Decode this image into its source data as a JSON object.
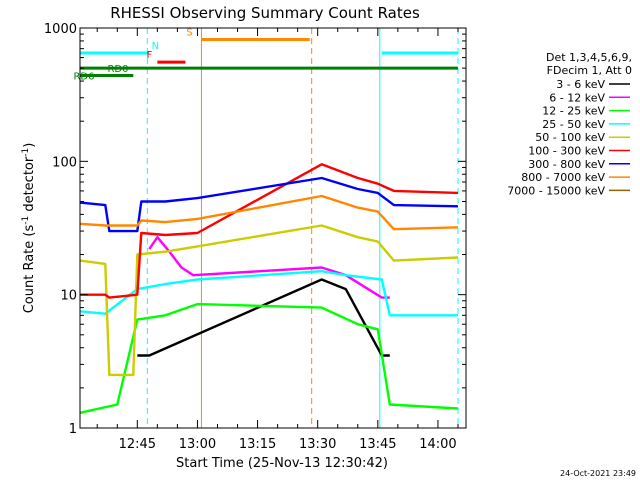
{
  "chart_data": {
    "type": "line",
    "title": "RHESSI Observing Summary Count Rates",
    "xlabel": "Start Time (25-Nov-13 12:30:42)",
    "ylabel_main": "Count Rate (s",
    "ylabel_sup1": "-1",
    "ylabel_mid": " detector",
    "ylabel_sup2": "-1",
    "ylabel_end": ")",
    "yscale": "log",
    "ylim": [
      1,
      1000
    ],
    "xlim": [
      "12:30:42",
      "14:07:00"
    ],
    "x_ticks": [
      "12:45",
      "13:00",
      "13:15",
      "13:30",
      "13:45",
      "14:00"
    ],
    "y_ticks": [
      "1",
      "10",
      "100",
      "1000"
    ],
    "legend_header": [
      "Det 1,3,4,5,6,9,",
      "FDecim 1, Att 0"
    ],
    "legend_position": "right",
    "timestamp": "24-Oct-2021 23:49",
    "series": [
      {
        "name": "3 - 6 keV",
        "color": "#000000",
        "points": [
          [
            "12:45:00",
            3.5
          ],
          [
            "12:48:00",
            3.5
          ],
          [
            "13:31:00",
            13
          ],
          [
            "13:37:00",
            11
          ],
          [
            "13:46:00",
            3.5
          ],
          [
            "13:48:00",
            3.5
          ]
        ]
      },
      {
        "name": "6 - 12 keV",
        "color": "#ff00ff",
        "points": [
          [
            "12:48:00",
            22
          ],
          [
            "12:50:00",
            27
          ],
          [
            "12:53:00",
            21
          ],
          [
            "12:56:00",
            16
          ],
          [
            "12:59:00",
            14
          ],
          [
            "13:31:00",
            16
          ],
          [
            "13:37:00",
            14
          ],
          [
            "13:46:00",
            9.5
          ],
          [
            "13:48:00",
            9.5
          ]
        ]
      },
      {
        "name": "12 - 25 keV",
        "color": "#00ff00",
        "points": [
          [
            "12:30:42",
            1.3
          ],
          [
            "12:40:00",
            1.5
          ],
          [
            "12:45:00",
            6.5
          ],
          [
            "12:52:00",
            7
          ],
          [
            "13:00:00",
            8.5
          ],
          [
            "13:31:00",
            8
          ],
          [
            "13:40:00",
            6
          ],
          [
            "13:45:00",
            5.5
          ],
          [
            "13:48:00",
            1.5
          ],
          [
            "14:05:00",
            1.4
          ]
        ]
      },
      {
        "name": "25 - 50 keV",
        "color": "#00ffff",
        "points": [
          [
            "12:30:42",
            7.5
          ],
          [
            "12:37:00",
            7.2
          ],
          [
            "12:45:00",
            11
          ],
          [
            "12:52:00",
            12
          ],
          [
            "13:00:00",
            13
          ],
          [
            "13:31:00",
            15
          ],
          [
            "13:37:00",
            14
          ],
          [
            "13:46:00",
            13
          ],
          [
            "13:48:00",
            7
          ],
          [
            "14:05:00",
            7
          ]
        ]
      },
      {
        "name": "50 - 100 keV",
        "color": "#cccc00",
        "points": [
          [
            "12:30:42",
            18
          ],
          [
            "12:37:00",
            17
          ],
          [
            "12:38:00",
            2.5
          ],
          [
            "12:44:00",
            2.5
          ],
          [
            "12:45:00",
            20
          ],
          [
            "12:52:00",
            21
          ],
          [
            "13:00:00",
            23
          ],
          [
            "13:31:00",
            33
          ],
          [
            "13:40:00",
            27
          ],
          [
            "13:45:00",
            25
          ],
          [
            "13:49:00",
            18
          ],
          [
            "14:05:00",
            19
          ]
        ]
      },
      {
        "name": "100 - 300 keV",
        "color": "#ff0000",
        "points": [
          [
            "12:30:42",
            10
          ],
          [
            "12:37:00",
            10
          ],
          [
            "12:38:00",
            9.5
          ],
          [
            "12:45:00",
            10
          ],
          [
            "12:46:00",
            29
          ],
          [
            "12:52:00",
            28
          ],
          [
            "13:00:00",
            29
          ],
          [
            "13:31:00",
            95
          ],
          [
            "13:40:00",
            75
          ],
          [
            "13:45:00",
            68
          ],
          [
            "13:49:00",
            60
          ],
          [
            "14:05:00",
            58
          ]
        ]
      },
      {
        "name": "300 - 800 keV",
        "color": "#0000ff",
        "points": [
          [
            "12:30:42",
            49
          ],
          [
            "12:37:00",
            47
          ],
          [
            "12:38:00",
            30
          ],
          [
            "12:45:00",
            30
          ],
          [
            "12:46:00",
            50
          ],
          [
            "12:52:00",
            50
          ],
          [
            "13:00:00",
            53
          ],
          [
            "13:31:00",
            75
          ],
          [
            "13:40:00",
            62
          ],
          [
            "13:45:00",
            58
          ],
          [
            "13:49:00",
            47
          ],
          [
            "14:05:00",
            46
          ]
        ]
      },
      {
        "name": "800 - 7000 keV",
        "color": "#ff8800",
        "points": [
          [
            "12:30:42",
            34
          ],
          [
            "12:37:00",
            33
          ],
          [
            "12:45:00",
            33
          ],
          [
            "12:46:00",
            36
          ],
          [
            "12:52:00",
            35
          ],
          [
            "13:00:00",
            37
          ],
          [
            "13:31:00",
            55
          ],
          [
            "13:40:00",
            45
          ],
          [
            "13:45:00",
            42
          ],
          [
            "13:49:00",
            31
          ],
          [
            "14:05:00",
            32
          ]
        ]
      },
      {
        "name": "7000 - 15000 keV",
        "color": "#8b6508",
        "points": []
      }
    ],
    "flags": [
      {
        "label": "N",
        "color": "#00ffff",
        "start": "12:30:42",
        "end": "12:48:00",
        "level": 650
      },
      {
        "label": "N",
        "color": "#00ffff",
        "start": "13:46:00",
        "end": "14:05:00",
        "level": 650,
        "hidden_label": true
      },
      {
        "label": "F",
        "color": "#ff0000",
        "start": "12:50:00",
        "end": "12:57:00",
        "level": 555
      },
      {
        "label": "S",
        "color": "#ff8800",
        "start": "13:01:00",
        "end": "13:28:00",
        "level": 820
      },
      {
        "label": "RD0",
        "color": "#008000",
        "start": "12:30:42",
        "end": "14:05:00",
        "level": 500
      },
      {
        "label": "RD6",
        "color": "#008000",
        "start": "12:30:42",
        "end": "12:44:00",
        "level": 440
      }
    ],
    "vertical_markers": [
      {
        "time": "12:30:42",
        "color": "#00ffff",
        "style": "solid"
      },
      {
        "time": "12:47:30",
        "color": "#00ffff",
        "style": "dashed"
      },
      {
        "time": "13:01:00",
        "color": "#ff8800",
        "style": "solid"
      },
      {
        "time": "13:28:30",
        "color": "#ff8800",
        "style": "dashed"
      },
      {
        "time": "13:45:30",
        "color": "#00ffff",
        "style": "solid"
      },
      {
        "time": "14:05:00",
        "color": "#00ffff",
        "style": "dashed"
      }
    ]
  }
}
